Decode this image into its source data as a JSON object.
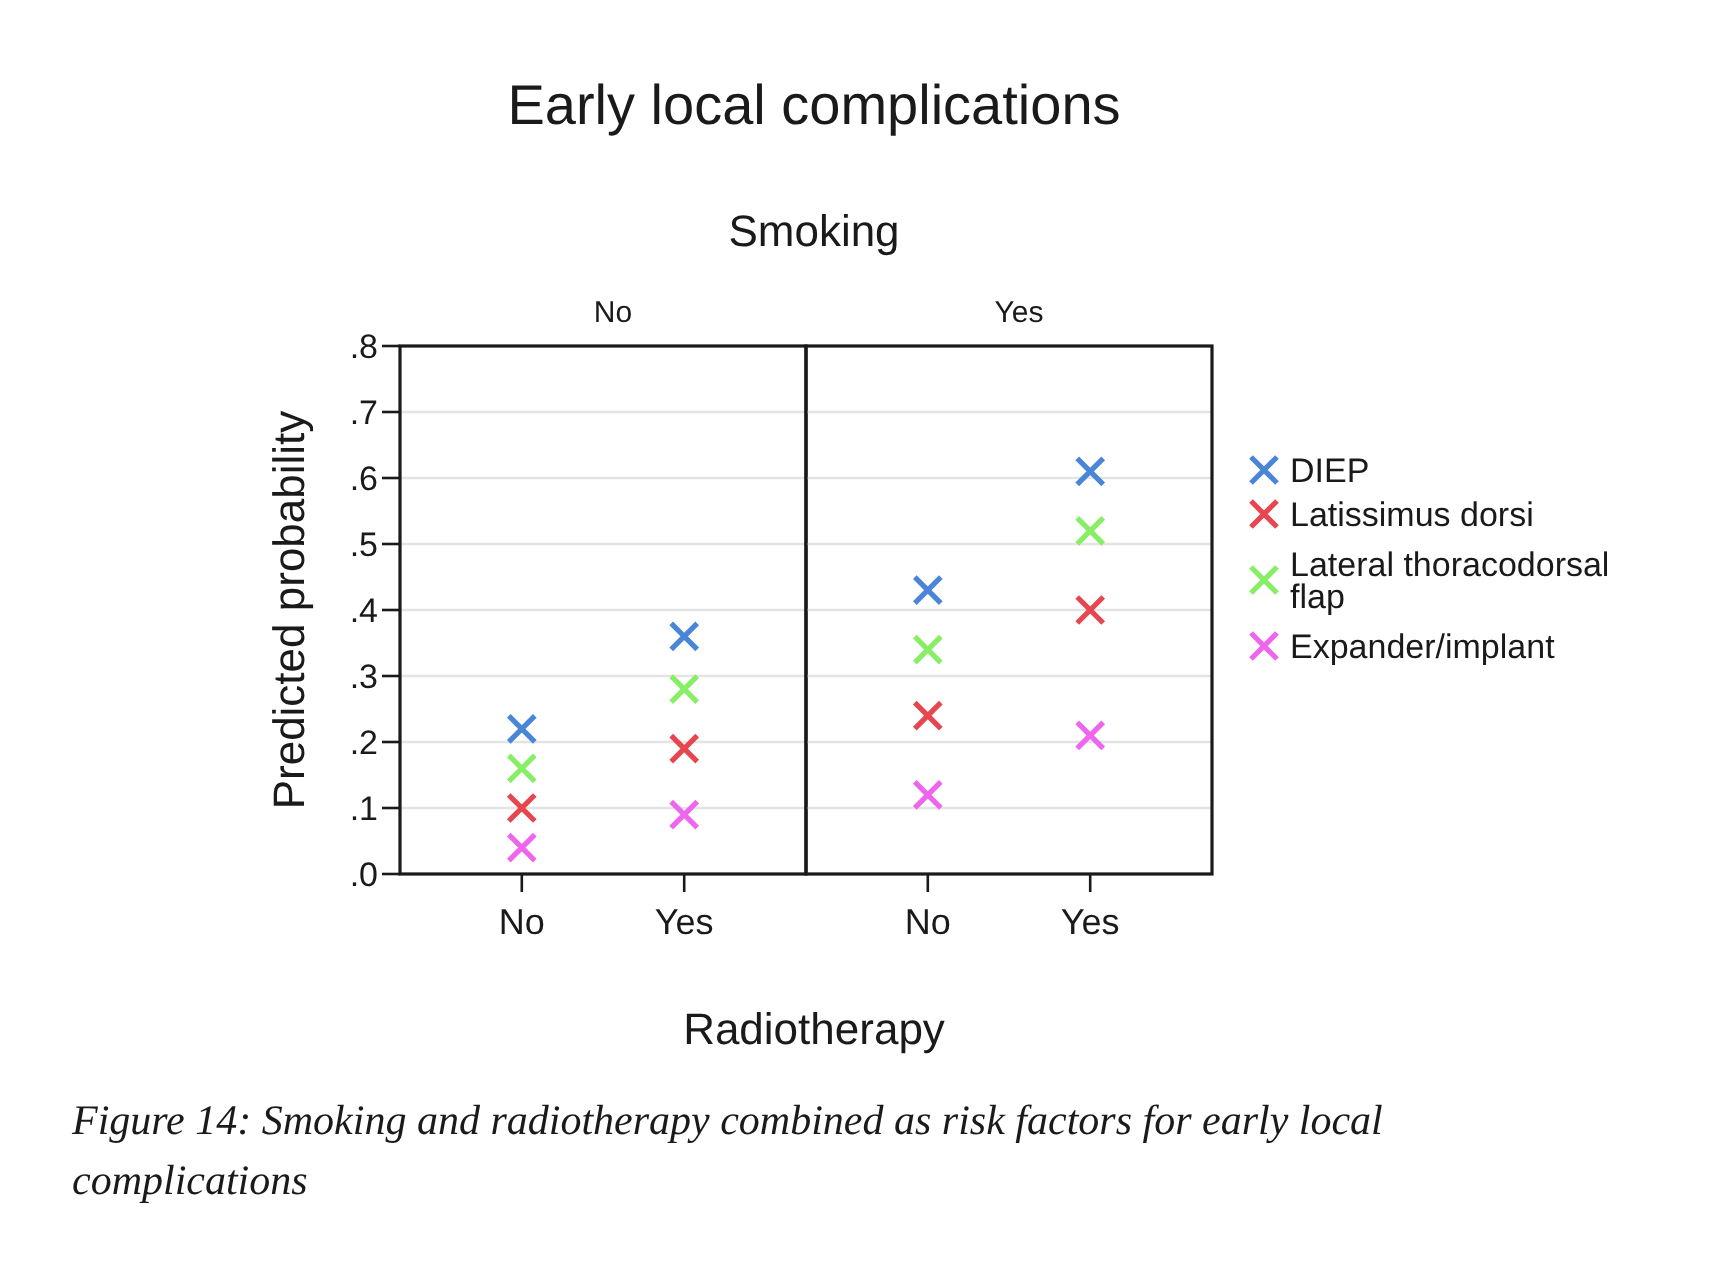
{
  "chart_data": [
    {
      "type": "scatter",
      "title": "No",
      "xlabel": "Radiotherapy",
      "ylabel": "Predicted probability",
      "categories": [
        "No",
        "Yes"
      ],
      "series": [
        {
          "name": "DIEP",
          "color": "#4a86d8",
          "values": [
            0.22,
            0.36
          ]
        },
        {
          "name": "Latissimus dorsi",
          "color": "#e8464f",
          "values": [
            0.1,
            0.19
          ]
        },
        {
          "name": "Lateral thoracodorsal flap",
          "color": "#88ee66",
          "values": [
            0.16,
            0.28
          ]
        },
        {
          "name": "Expander/implant",
          "color": "#ee66ee",
          "values": [
            0.04,
            0.09
          ]
        }
      ],
      "ylim": [
        0,
        0.8
      ],
      "yticks": [
        {
          "value": 0,
          "label": ".0"
        },
        {
          "value": 0.1,
          "label": ".1"
        },
        {
          "value": 0.2,
          "label": ".2"
        },
        {
          "value": 0.3,
          "label": ".3"
        },
        {
          "value": 0.4,
          "label": ".4"
        },
        {
          "value": 0.5,
          "label": ".5"
        },
        {
          "value": 0.6,
          "label": ".6"
        },
        {
          "value": 0.7,
          "label": ".7"
        },
        {
          "value": 0.8,
          "label": ".8"
        }
      ],
      "grid": "y",
      "marker": "cross",
      "legend": "right",
      "annotations": [
        "Early local complications",
        "Smoking",
        "Figure 14: Smoking and radiotherapy combined as risk factors for early local complications"
      ]
    },
    {
      "type": "scatter",
      "title": "Yes",
      "categories": [
        "No",
        "Yes"
      ],
      "series": [
        {
          "color": "#4a86d8",
          "values": [
            0.43,
            0.61
          ]
        },
        {
          "color": "#e8464f",
          "values": [
            0.24,
            0.4
          ]
        },
        {
          "color": "#88ee66",
          "values": [
            0.34,
            0.52
          ]
        },
        {
          "color": "#ee66ee",
          "values": [
            0.12,
            0.21
          ]
        }
      ],
      "ylim": [
        0,
        0.8
      ],
      "yticks": [
        0,
        0.1,
        0.2,
        0.3,
        0.4,
        0.5,
        0.6,
        0.7,
        0.8
      ],
      "grid": "y",
      "marker": "cross",
      "tick_labels": "x"
    }
  ]
}
